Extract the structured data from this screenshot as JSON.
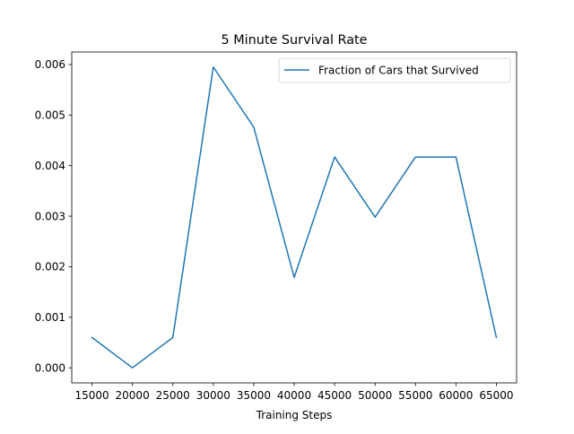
{
  "chart_data": {
    "type": "line",
    "title": "5 Minute Survival Rate",
    "xlabel": "Training Steps",
    "ylabel": "",
    "x": [
      15000,
      20000,
      25000,
      30000,
      35000,
      40000,
      45000,
      50000,
      55000,
      60000,
      65000
    ],
    "series": [
      {
        "name": "Fraction of Cars that Survived",
        "color": "#1f77b4",
        "values": [
          0.0006,
          0.0,
          0.0006,
          0.00595,
          0.00476,
          0.00179,
          0.00417,
          0.00298,
          0.00417,
          0.00417,
          0.0006
        ]
      }
    ],
    "xticks": [
      15000,
      20000,
      25000,
      30000,
      35000,
      40000,
      45000,
      50000,
      55000,
      60000,
      65000
    ],
    "yticks": [
      "0.000",
      "0.001",
      "0.002",
      "0.003",
      "0.004",
      "0.005",
      "0.006"
    ],
    "xlim": [
      12500,
      67500
    ],
    "ylim": [
      -0.000298,
      0.006247
    ],
    "grid": false,
    "legend_position": "top-right"
  }
}
